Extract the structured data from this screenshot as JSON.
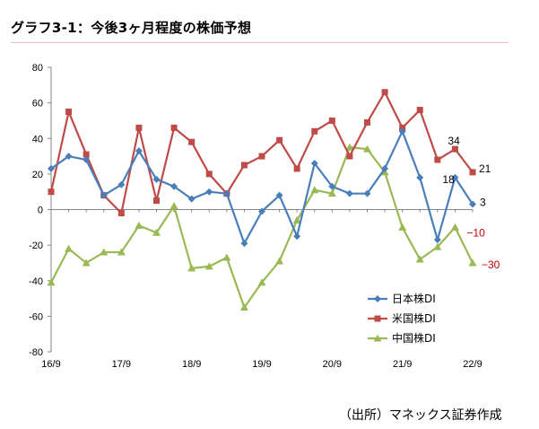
{
  "title": "グラフ3-1：今後3ヶ月程度の株価予想",
  "source": "（出所）マネックス証券作成",
  "chart_data": {
    "type": "line",
    "title": "グラフ3-1：今後3ヶ月程度の株価予想",
    "xlabel": "",
    "ylabel": "",
    "ylim": [
      -80,
      80
    ],
    "yticks": [
      80,
      60,
      40,
      20,
      0,
      -20,
      -40,
      -60,
      -80
    ],
    "x_tick_labels": [
      "16/9",
      "17/9",
      "18/9",
      "19/9",
      "20/9",
      "21/9",
      "22/9"
    ],
    "x_tick_positions": [
      0,
      4,
      8,
      12,
      16,
      20,
      24
    ],
    "num_points": 25,
    "legend_position": "bottom-right",
    "grid": false,
    "series": [
      {
        "name": "日本株DI",
        "color": "#4a7ebb",
        "marker": "diamond",
        "values": [
          23,
          30,
          28,
          8,
          14,
          33,
          17,
          13,
          6,
          10,
          9,
          -19,
          -1,
          8,
          -15,
          26,
          13,
          9,
          9,
          23,
          44,
          18,
          -17,
          18,
          3
        ]
      },
      {
        "name": "米国株DI",
        "color": "#be4b48",
        "marker": "square",
        "values": [
          10,
          55,
          31,
          8,
          -2,
          46,
          5,
          46,
          38,
          20,
          9,
          25,
          30,
          39,
          23,
          44,
          50,
          30,
          49,
          66,
          46,
          56,
          28,
          34,
          21
        ]
      },
      {
        "name": "中国株DI",
        "color": "#98b954",
        "marker": "triangle",
        "values": [
          -41,
          -22,
          -30,
          -24,
          -24,
          -9,
          -13,
          2,
          -33,
          -32,
          -27,
          -55,
          -41,
          -29,
          -6,
          11,
          9,
          35,
          34,
          21,
          -10,
          -28,
          -21,
          -10,
          -30
        ]
      }
    ],
    "annotations": [
      {
        "text": "34",
        "series": "米国株DI",
        "index": 23,
        "color": "#000000"
      },
      {
        "text": "21",
        "series": "米国株DI",
        "index": 24,
        "color": "#000000"
      },
      {
        "text": "18",
        "series": "日本株DI",
        "index": 23,
        "color": "#000000"
      },
      {
        "text": "3",
        "series": "日本株DI",
        "index": 24,
        "color": "#000000"
      },
      {
        "text": "−10",
        "series": "中国株DI",
        "index": 23,
        "color": "#c00000"
      },
      {
        "text": "−30",
        "series": "中国株DI",
        "index": 24,
        "color": "#c00000"
      }
    ]
  }
}
